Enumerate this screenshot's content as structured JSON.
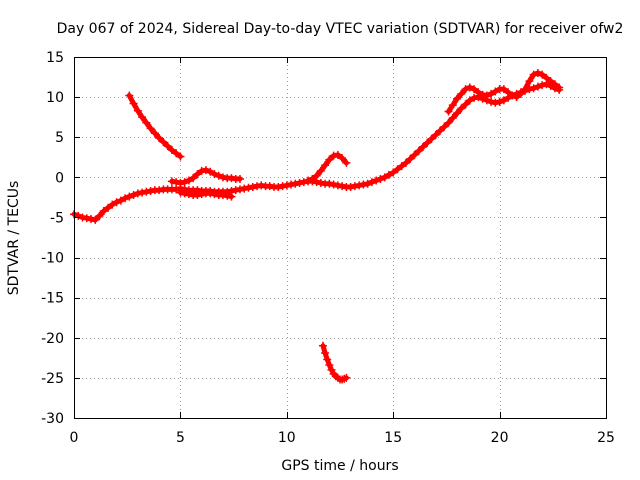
{
  "chart_data": {
    "type": "scatter",
    "title": "Day 067 of 2024, Sidereal Day-to-day VTEC variation (SDTVAR) for receiver ofw2",
    "xlabel": "GPS time / hours",
    "ylabel": "SDTVAR / TECUs",
    "xlim": [
      0,
      25
    ],
    "ylim": [
      -30,
      15
    ],
    "x_ticks": [
      0,
      5,
      10,
      15,
      20,
      25
    ],
    "y_ticks": [
      -30,
      -25,
      -20,
      -15,
      -10,
      -5,
      0,
      5,
      10,
      15
    ],
    "grid": true,
    "legend": "none",
    "series": [
      {
        "name": "main-trace",
        "color": "#ff0000",
        "x": [
          0.0,
          0.2,
          0.4,
          0.6,
          0.8,
          1.0,
          1.2,
          1.4,
          1.6,
          1.8,
          2.0,
          2.2,
          2.4,
          2.6,
          2.8,
          3.0,
          3.2,
          3.4,
          3.6,
          3.8,
          4.0,
          4.2,
          4.4,
          4.6,
          4.8,
          5.0,
          5.2,
          5.4,
          5.6,
          5.8,
          6.0,
          6.2,
          6.4,
          6.6,
          6.8,
          7.0,
          7.2,
          7.4,
          7.6,
          7.8,
          8.0,
          8.2,
          8.4,
          8.6,
          8.8,
          9.0,
          9.2,
          9.4,
          9.6,
          9.8,
          10.0,
          10.2,
          10.4,
          10.6,
          10.8,
          11.0,
          11.2,
          11.4,
          11.6,
          11.8,
          12.0,
          12.2,
          12.4,
          12.6,
          12.8,
          13.0,
          13.2,
          13.4,
          13.6,
          13.8,
          14.0,
          14.2,
          14.4,
          14.6,
          14.8,
          15.0,
          15.2,
          15.4,
          15.6,
          15.8,
          16.0,
          16.2,
          16.4,
          16.6,
          16.8,
          17.0,
          17.2,
          17.4,
          17.6,
          17.8,
          18.0,
          18.2,
          18.4,
          18.6,
          18.8,
          19.0,
          19.2,
          19.4,
          19.6,
          19.8,
          20.0,
          20.2,
          20.4,
          20.6,
          20.8,
          21.0,
          21.2,
          21.4,
          21.6,
          21.8,
          22.0,
          22.2,
          22.4,
          22.6,
          22.8
        ],
        "y": [
          -4.6,
          -4.8,
          -5.0,
          -5.1,
          -5.2,
          -5.3,
          -4.8,
          -4.2,
          -3.8,
          -3.4,
          -3.1,
          -2.9,
          -2.6,
          -2.4,
          -2.2,
          -2.0,
          -1.9,
          -1.8,
          -1.7,
          -1.6,
          -1.6,
          -1.5,
          -1.5,
          -1.5,
          -1.5,
          -1.4,
          -1.5,
          -1.6,
          -1.6,
          -1.6,
          -1.7,
          -1.7,
          -1.7,
          -1.8,
          -1.8,
          -1.8,
          -1.8,
          -1.7,
          -1.6,
          -1.5,
          -1.4,
          -1.3,
          -1.2,
          -1.1,
          -1.0,
          -1.1,
          -1.1,
          -1.2,
          -1.2,
          -1.1,
          -1.0,
          -0.9,
          -0.8,
          -0.7,
          -0.6,
          -0.5,
          -0.5,
          -0.6,
          -0.7,
          -0.8,
          -0.8,
          -0.9,
          -1.0,
          -1.1,
          -1.2,
          -1.2,
          -1.1,
          -1.0,
          -0.9,
          -0.8,
          -0.6,
          -0.4,
          -0.2,
          0.0,
          0.3,
          0.6,
          1.0,
          1.4,
          1.8,
          2.3,
          2.8,
          3.3,
          3.8,
          4.3,
          4.8,
          5.3,
          5.8,
          6.3,
          6.8,
          7.4,
          8.0,
          8.6,
          9.1,
          9.6,
          9.9,
          10.0,
          9.8,
          9.6,
          9.4,
          9.3,
          9.4,
          9.6,
          9.9,
          10.2,
          10.4,
          10.6,
          10.8,
          11.0,
          11.1,
          11.3,
          11.5,
          11.6,
          11.4,
          11.1,
          10.9
        ]
      },
      {
        "name": "upper-bump-trace",
        "color": "#ff0000",
        "x": [
          4.6,
          4.8,
          5.0,
          5.2,
          5.4,
          5.6,
          5.8,
          6.0,
          6.2,
          6.4,
          6.6,
          6.8,
          7.0,
          7.2,
          7.4,
          7.6,
          7.8
        ],
        "y": [
          -0.5,
          -0.6,
          -0.7,
          -0.6,
          -0.4,
          -0.1,
          0.4,
          0.8,
          0.9,
          0.7,
          0.4,
          0.2,
          0.0,
          -0.1,
          -0.1,
          -0.2,
          -0.2
        ]
      },
      {
        "name": "lower-bump-trace",
        "color": "#ff0000",
        "x": [
          5.0,
          5.2,
          5.4,
          5.6,
          5.8,
          6.0,
          6.2,
          6.4,
          6.6,
          6.8,
          7.0,
          7.2,
          7.4
        ],
        "y": [
          -1.9,
          -2.0,
          -2.1,
          -2.2,
          -2.2,
          -2.1,
          -2.0,
          -2.0,
          -2.1,
          -2.2,
          -2.2,
          -2.3,
          -2.4
        ]
      },
      {
        "name": "descending-segment",
        "color": "#ff0000",
        "x": [
          2.6,
          2.8,
          3.0,
          3.2,
          3.4,
          3.6,
          3.8,
          4.0,
          4.2,
          4.4,
          4.6,
          4.8,
          5.0
        ],
        "y": [
          10.2,
          9.2,
          8.3,
          7.5,
          6.8,
          6.1,
          5.5,
          4.9,
          4.4,
          3.9,
          3.4,
          3.0,
          2.6
        ]
      },
      {
        "name": "evening-bump-trace",
        "color": "#ff0000",
        "x": [
          11.0,
          11.2,
          11.4,
          11.6,
          11.8,
          12.0,
          12.2,
          12.4,
          12.6,
          12.8
        ],
        "y": [
          -0.4,
          -0.2,
          0.2,
          0.8,
          1.5,
          2.2,
          2.7,
          2.8,
          2.4,
          1.8
        ]
      },
      {
        "name": "late-high-trace",
        "color": "#ff0000",
        "x": [
          17.6,
          17.8,
          18.0,
          18.2,
          18.4,
          18.6,
          18.8,
          19.0,
          19.2,
          19.4,
          19.6,
          19.8,
          20.0,
          20.2,
          20.4,
          20.6,
          20.8,
          21.0,
          21.2,
          21.4,
          21.6,
          21.8,
          22.0,
          22.2,
          22.4,
          22.6,
          22.8
        ],
        "y": [
          8.2,
          9.0,
          9.8,
          10.4,
          11.0,
          11.2,
          11.0,
          10.6,
          10.3,
          10.2,
          10.4,
          10.7,
          11.0,
          11.0,
          10.6,
          10.2,
          10.0,
          10.4,
          11.0,
          12.0,
          12.8,
          13.0,
          12.8,
          12.4,
          12.0,
          11.6,
          11.2
        ]
      },
      {
        "name": "outlier-negative-segment",
        "color": "#ff0000",
        "x": [
          11.7,
          11.8,
          11.9,
          12.0,
          12.1,
          12.2,
          12.3,
          12.4,
          12.5,
          12.6,
          12.7,
          12.8
        ],
        "y": [
          -21.0,
          -21.9,
          -22.7,
          -23.4,
          -24.0,
          -24.5,
          -24.8,
          -25.0,
          -25.2,
          -25.2,
          -25.1,
          -25.0
        ]
      }
    ]
  }
}
